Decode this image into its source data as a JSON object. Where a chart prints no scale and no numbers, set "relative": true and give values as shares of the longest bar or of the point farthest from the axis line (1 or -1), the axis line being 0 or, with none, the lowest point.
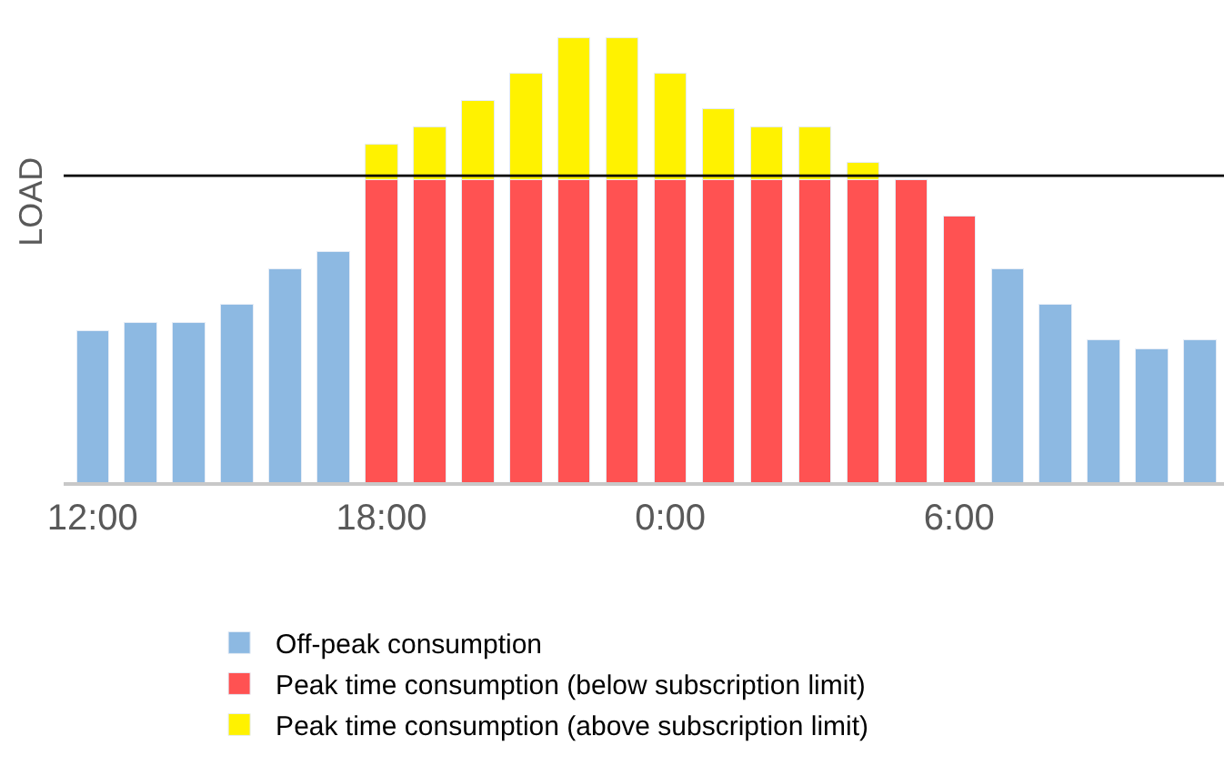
{
  "chart_data": {
    "type": "bar",
    "stacked": true,
    "relative": true,
    "ylabel": "LOAD",
    "legend": "bottom",
    "categories": [
      "12:00",
      null,
      null,
      null,
      null,
      null,
      "18:00",
      null,
      null,
      null,
      null,
      null,
      "0:00",
      null,
      null,
      null,
      null,
      null,
      "6:00",
      null,
      null,
      null,
      null,
      null
    ],
    "series": [
      {
        "name": "Off-peak consumption",
        "color": "#8db9e2",
        "values": [
          0.34,
          0.36,
          0.36,
          0.4,
          0.48,
          0.52,
          null,
          null,
          null,
          null,
          null,
          null,
          null,
          null,
          null,
          null,
          null,
          null,
          null,
          0.48,
          0.4,
          0.32,
          0.3,
          0.32
        ]
      },
      {
        "name": "Peak time consumption (below subscription limit)",
        "color": "#ff5252",
        "values": [
          null,
          null,
          null,
          null,
          null,
          null,
          0.68,
          0.68,
          0.68,
          0.68,
          0.68,
          0.68,
          0.68,
          0.68,
          0.68,
          0.68,
          0.68,
          0.68,
          0.6,
          null,
          null,
          null,
          null,
          null
        ]
      },
      {
        "name": "Peak time consumption (above subscription limit)",
        "color": "#fff200",
        "values": [
          null,
          null,
          null,
          null,
          null,
          null,
          0.08,
          0.12,
          0.18,
          0.24,
          0.32,
          0.32,
          0.24,
          0.16,
          0.12,
          0.12,
          0.04,
          null,
          null,
          null,
          null,
          null,
          null,
          null
        ]
      }
    ],
    "ref_lines": [
      {
        "axis": "y",
        "value": 0.69,
        "color": "#000000"
      }
    ]
  }
}
